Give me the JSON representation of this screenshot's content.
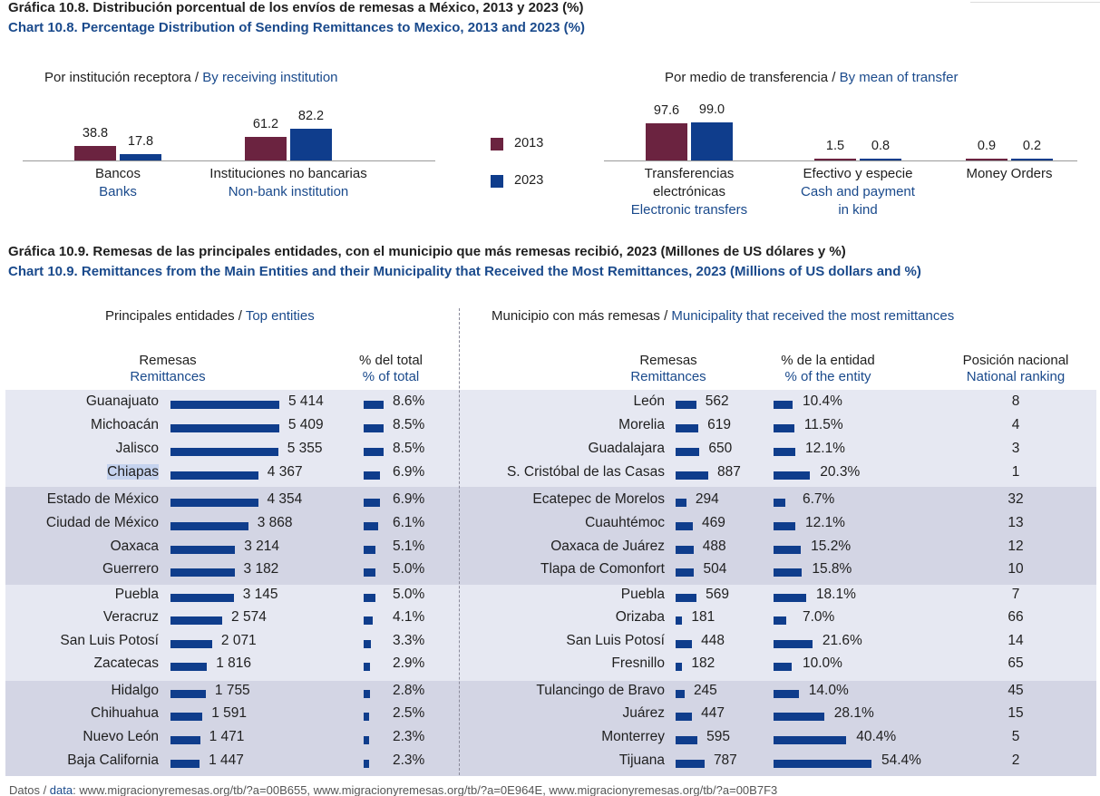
{
  "colors": {
    "y2013": "#6b2340",
    "y2023": "#0f3d8c",
    "band_light": "#e6e8f2",
    "band_dark": "#d3d5e4",
    "text_blue": "#1a4a8c"
  },
  "chart108": {
    "title_es": "Gráfica 10.8. Distribución porcentual de los envíos de remesas a México, 2013 y 2023 (%)",
    "title_en": "Chart 10.8. Percentage Distribution of Sending Remittances to Mexico, 2013 and 2023 (%)",
    "left_sub_es": "Por institución receptora / ",
    "left_sub_en": "By receiving institution",
    "right_sub_es": "Por medio de transferencia / ",
    "right_sub_en": "By mean of transfer",
    "legend": [
      {
        "label": "2013"
      },
      {
        "label": "2023"
      }
    ]
  },
  "chart109": {
    "title_es": "Gráfica 10.9. Remesas de las principales entidades, con el municipio que más remesas recibió, 2023 (Millones de US dólares y %)",
    "title_en": "Chart 10.9. Remittances from the Main Entities and their Municipality that Received the Most Remittances, 2023 (Millions of US dollars and %)",
    "left_sub_es": "Principales entidades / ",
    "left_sub_en": "Top entities",
    "right_sub_es": "Municipio con más remesas / ",
    "right_sub_en": "Municipality that received the most remittances",
    "col_rem_es": "Remesas",
    "col_rem_en": "Remittances",
    "col_tot_es": "% del total",
    "col_tot_en": "% of total",
    "col_ent_es": "% de la entidad",
    "col_ent_en": "% of the entity",
    "col_rank_es": "Posición nacional",
    "col_rank_en": "National ranking"
  },
  "chart_data": [
    {
      "type": "bar",
      "title": "Por institución receptora / By receiving institution",
      "categories": [
        "Bancos / Banks",
        "Instituciones no bancarias / Non-bank institution"
      ],
      "category_labels": [
        {
          "es": "Bancos",
          "en": "Banks"
        },
        {
          "es": "Instituciones no bancarias",
          "en": "Non-bank institution"
        }
      ],
      "series": [
        {
          "name": "2013",
          "values": [
            38.8,
            61.2
          ]
        },
        {
          "name": "2023",
          "values": [
            17.8,
            82.2
          ]
        }
      ],
      "value_labels": {
        "2013": [
          "38.8",
          "61.2"
        ],
        "2023": [
          "17.8",
          "82.2"
        ]
      }
    },
    {
      "type": "bar",
      "title": "Por medio de transferencia / By mean of transfer",
      "categories": [
        "Transferencias electrónicas / Electronic transfers",
        "Efectivo y especie / Cash and payment in kind",
        "Money Orders"
      ],
      "category_labels": [
        {
          "es1": "Transferencias",
          "es2": "electrónicas",
          "en1": "Electronic transfers",
          "en2": ""
        },
        {
          "es1": "Efectivo y especie",
          "es2": "",
          "en1": "Cash and payment",
          "en2": "in kind"
        },
        {
          "es1": "Money Orders",
          "es2": "",
          "en1": "",
          "en2": ""
        }
      ],
      "series": [
        {
          "name": "2013",
          "values": [
            97.6,
            1.5,
            0.9
          ]
        },
        {
          "name": "2023",
          "values": [
            99.0,
            0.8,
            0.2
          ]
        }
      ],
      "value_labels": {
        "2013": [
          "97.6",
          "1.5",
          "0.9"
        ],
        "2023": [
          "99.0",
          "0.8",
          "0.2"
        ]
      }
    },
    {
      "type": "table",
      "title": "Principales entidades / Top entities and Municipio con más remesas / Municipality that received the most remittances",
      "rows": [
        {
          "entity": "Guanajuato",
          "rem": 5414,
          "rem_label": "5 414",
          "pct": 8.6,
          "pct_label": "8.6%",
          "municipio": "León",
          "m_rem": 562,
          "m_rem_label": "562",
          "m_pct": 10.4,
          "m_pct_label": "10.4%",
          "rank": "8"
        },
        {
          "entity": "Michoacán",
          "rem": 5409,
          "rem_label": "5 409",
          "pct": 8.5,
          "pct_label": "8.5%",
          "municipio": "Morelia",
          "m_rem": 619,
          "m_rem_label": "619",
          "m_pct": 11.5,
          "m_pct_label": "11.5%",
          "rank": "4"
        },
        {
          "entity": "Jalisco",
          "rem": 5355,
          "rem_label": "5 355",
          "pct": 8.5,
          "pct_label": "8.5%",
          "municipio": "Guadalajara",
          "m_rem": 650,
          "m_rem_label": "650",
          "m_pct": 12.1,
          "m_pct_label": "12.1%",
          "rank": "3"
        },
        {
          "entity": "Chiapas",
          "rem": 4367,
          "rem_label": "4 367",
          "pct": 6.9,
          "pct_label": "6.9%",
          "municipio": "S. Cristóbal de las Casas",
          "m_rem": 887,
          "m_rem_label": "887",
          "m_pct": 20.3,
          "m_pct_label": "20.3%",
          "rank": "1"
        },
        {
          "entity": "Estado de México",
          "rem": 4354,
          "rem_label": "4 354",
          "pct": 6.9,
          "pct_label": "6.9%",
          "municipio": "Ecatepec de Morelos",
          "m_rem": 294,
          "m_rem_label": "294",
          "m_pct": 6.7,
          "m_pct_label": "6.7%",
          "rank": "32"
        },
        {
          "entity": "Ciudad de México",
          "rem": 3868,
          "rem_label": "3 868",
          "pct": 6.1,
          "pct_label": "6.1%",
          "municipio": "Cuauhtémoc",
          "m_rem": 469,
          "m_rem_label": "469",
          "m_pct": 12.1,
          "m_pct_label": "12.1%",
          "rank": "13"
        },
        {
          "entity": "Oaxaca",
          "rem": 3214,
          "rem_label": "3 214",
          "pct": 5.1,
          "pct_label": "5.1%",
          "municipio": "Oaxaca de Juárez",
          "m_rem": 488,
          "m_rem_label": "488",
          "m_pct": 15.2,
          "m_pct_label": "15.2%",
          "rank": "12"
        },
        {
          "entity": "Guerrero",
          "rem": 3182,
          "rem_label": "3 182",
          "pct": 5.0,
          "pct_label": "5.0%",
          "municipio": "Tlapa de Comonfort",
          "m_rem": 504,
          "m_rem_label": "504",
          "m_pct": 15.8,
          "m_pct_label": "15.8%",
          "rank": "10"
        },
        {
          "entity": "Puebla",
          "rem": 3145,
          "rem_label": "3 145",
          "pct": 5.0,
          "pct_label": "5.0%",
          "municipio": "Puebla",
          "m_rem": 569,
          "m_rem_label": "569",
          "m_pct": 18.1,
          "m_pct_label": "18.1%",
          "rank": "7"
        },
        {
          "entity": "Veracruz",
          "rem": 2574,
          "rem_label": "2 574",
          "pct": 4.1,
          "pct_label": "4.1%",
          "municipio": "Orizaba",
          "m_rem": 181,
          "m_rem_label": "181",
          "m_pct": 7.0,
          "m_pct_label": "7.0%",
          "rank": "66"
        },
        {
          "entity": "San Luis Potosí",
          "rem": 2071,
          "rem_label": "2 071",
          "pct": 3.3,
          "pct_label": "3.3%",
          "municipio": "San Luis Potosí",
          "m_rem": 448,
          "m_rem_label": "448",
          "m_pct": 21.6,
          "m_pct_label": "21.6%",
          "rank": "14"
        },
        {
          "entity": "Zacatecas",
          "rem": 1816,
          "rem_label": "1 816",
          "pct": 2.9,
          "pct_label": "2.9%",
          "municipio": "Fresnillo",
          "m_rem": 182,
          "m_rem_label": "182",
          "m_pct": 10.0,
          "m_pct_label": "10.0%",
          "rank": "65"
        },
        {
          "entity": "Hidalgo",
          "rem": 1755,
          "rem_label": "1 755",
          "pct": 2.8,
          "pct_label": "2.8%",
          "municipio": "Tulancingo de Bravo",
          "m_rem": 245,
          "m_rem_label": "245",
          "m_pct": 14.0,
          "m_pct_label": "14.0%",
          "rank": "45"
        },
        {
          "entity": "Chihuahua",
          "rem": 1591,
          "rem_label": "1 591",
          "pct": 2.5,
          "pct_label": "2.5%",
          "municipio": "Juárez",
          "m_rem": 447,
          "m_rem_label": "447",
          "m_pct": 28.1,
          "m_pct_label": "28.1%",
          "rank": "15"
        },
        {
          "entity": "Nuevo León",
          "rem": 1471,
          "rem_label": "1 471",
          "pct": 2.3,
          "pct_label": "2.3%",
          "municipio": "Monterrey",
          "m_rem": 595,
          "m_rem_label": "595",
          "m_pct": 40.4,
          "m_pct_label": "40.4%",
          "rank": "5"
        },
        {
          "entity": "Baja California",
          "rem": 1447,
          "rem_label": "1 447",
          "pct": 2.3,
          "pct_label": "2.3%",
          "municipio": "Tijuana",
          "m_rem": 787,
          "m_rem_label": "787",
          "m_pct": 54.4,
          "m_pct_label": "54.4%",
          "rank": "2"
        }
      ]
    }
  ],
  "footer": {
    "label_es": "Datos / ",
    "label_en": "data",
    "sources": ": www.migracionyremesas.org/tb/?a=00B655, www.migracionyremesas.org/tb/?a=0E964E, www.migracionyremesas.org/tb/?a=00B7F3"
  }
}
